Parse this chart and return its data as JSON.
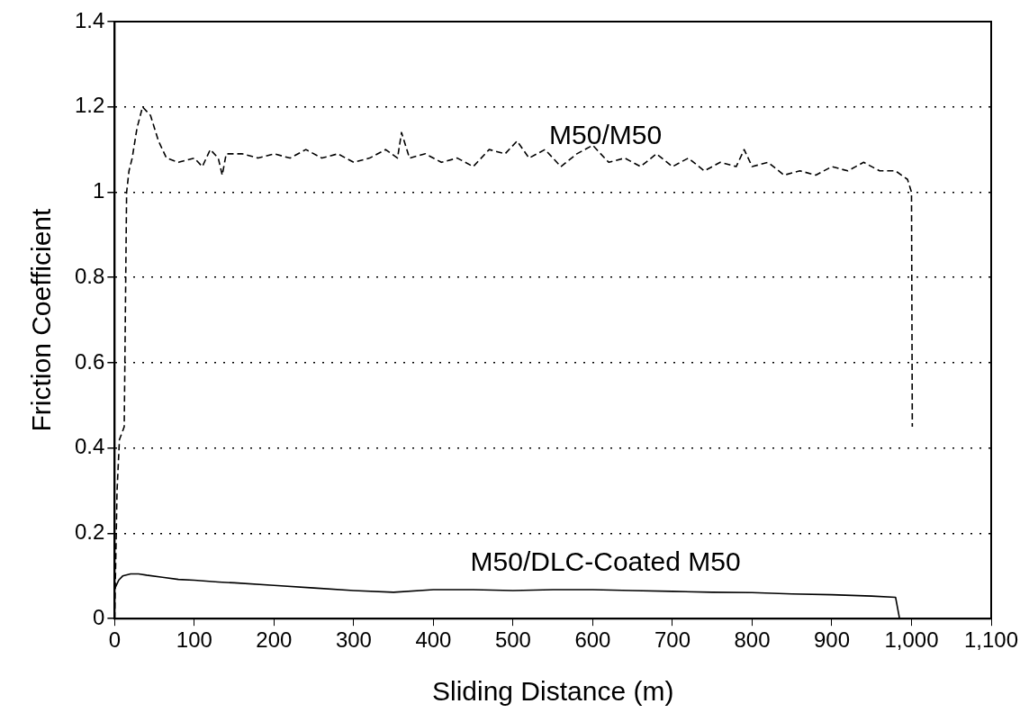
{
  "chart_data": {
    "type": "line",
    "xlabel": "Sliding Distance (m)",
    "ylabel": "Friction Coefficient",
    "xlim": [
      0,
      1100
    ],
    "xticks": [
      0,
      100,
      200,
      300,
      400,
      500,
      600,
      700,
      800,
      900,
      {
        "value": 1000,
        "label": "1,000"
      },
      {
        "value": 1100,
        "label": "1,100"
      }
    ],
    "ylim": [
      0,
      1.4
    ],
    "yticks": [
      0,
      0.2,
      0.4,
      0.6,
      0.8,
      1,
      1.2,
      1.4
    ],
    "grid": "y",
    "legend": false,
    "marker": "none",
    "series": [
      {
        "name": "M50/M50",
        "color": "#000000",
        "line_style": "dashed",
        "x": [
          0,
          3,
          6,
          12,
          15,
          18,
          22,
          28,
          35,
          45,
          55,
          65,
          80,
          100,
          110,
          120,
          130,
          135,
          140,
          160,
          180,
          200,
          220,
          240,
          260,
          280,
          300,
          320,
          340,
          355,
          360,
          370,
          390,
          410,
          430,
          450,
          470,
          490,
          505,
          520,
          540,
          560,
          580,
          600,
          620,
          640,
          660,
          680,
          700,
          720,
          740,
          760,
          780,
          790,
          800,
          820,
          840,
          860,
          880,
          900,
          920,
          940,
          960,
          980,
          995,
          1000,
          1001
        ],
        "values": [
          0,
          0.3,
          0.42,
          0.45,
          1,
          1.05,
          1.08,
          1.15,
          1.2,
          1.18,
          1.12,
          1.08,
          1.07,
          1.08,
          1.06,
          1.1,
          1.08,
          1.04,
          1.09,
          1.09,
          1.08,
          1.09,
          1.08,
          1.1,
          1.08,
          1.09,
          1.07,
          1.08,
          1.1,
          1.08,
          1.14,
          1.08,
          1.09,
          1.07,
          1.08,
          1.06,
          1.1,
          1.09,
          1.12,
          1.08,
          1.1,
          1.06,
          1.09,
          1.11,
          1.07,
          1.08,
          1.06,
          1.09,
          1.06,
          1.08,
          1.05,
          1.07,
          1.06,
          1.1,
          1.06,
          1.07,
          1.04,
          1.05,
          1.04,
          1.06,
          1.05,
          1.07,
          1.05,
          1.05,
          1.03,
          1,
          0.45
        ]
      },
      {
        "name": "M50/DLC-Coated M50",
        "color": "#000000",
        "line_style": "solid",
        "x": [
          0,
          5,
          10,
          20,
          30,
          40,
          60,
          80,
          100,
          130,
          150,
          200,
          250,
          300,
          350,
          400,
          450,
          500,
          550,
          600,
          650,
          700,
          750,
          800,
          850,
          900,
          950,
          980,
          985
        ],
        "values": [
          0.07,
          0.09,
          0.1,
          0.105,
          0.105,
          0.102,
          0.097,
          0.092,
          0.09,
          0.086,
          0.084,
          0.078,
          0.072,
          0.066,
          0.062,
          0.068,
          0.068,
          0.066,
          0.068,
          0.068,
          0.066,
          0.064,
          0.062,
          0.061,
          0.058,
          0.056,
          0.053,
          0.05,
          0
        ]
      }
    ]
  }
}
